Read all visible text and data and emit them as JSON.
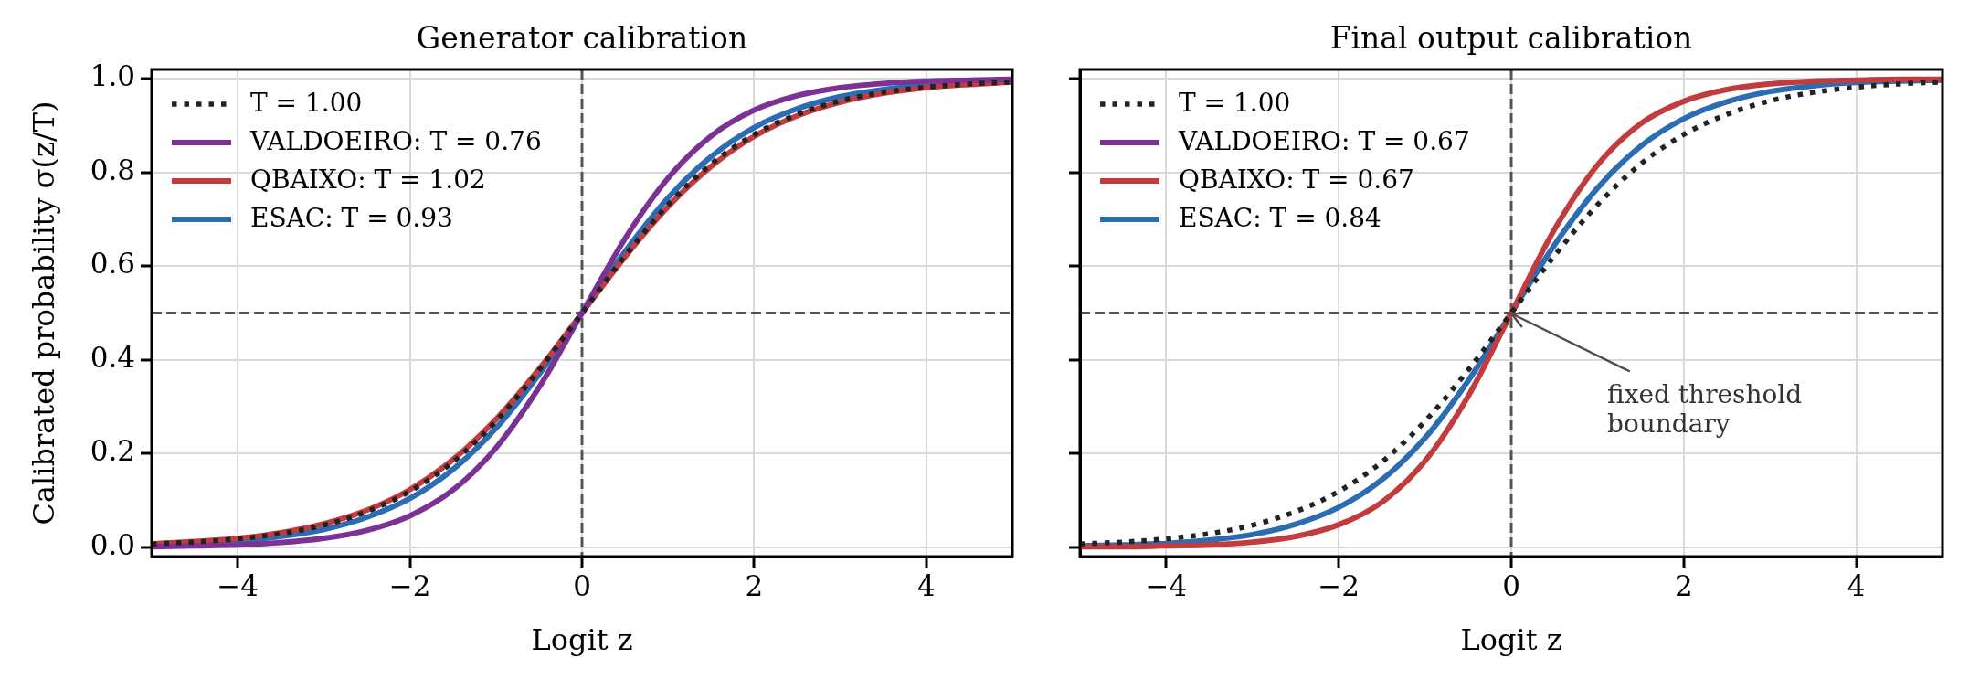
{
  "chart_data": [
    {
      "type": "line",
      "title": "Generator calibration",
      "xlabel": "Logit z",
      "ylabel": "Calibrated probability σ(z/T)",
      "x": [
        -5,
        -4.5,
        -4,
        -3.5,
        -3,
        -2.5,
        -2,
        -1.5,
        -1,
        -0.5,
        0,
        0.5,
        1,
        1.5,
        2,
        2.5,
        3,
        3.5,
        4,
        4.5,
        5
      ],
      "series": [
        {
          "name": "T = 1.00",
          "color": "#222222",
          "line_style": "dotted",
          "values": [
            0.007,
            0.011,
            0.018,
            0.029,
            0.047,
            0.076,
            0.119,
            0.182,
            0.269,
            0.378,
            0.5,
            0.622,
            0.731,
            0.818,
            0.881,
            0.924,
            0.953,
            0.971,
            0.982,
            0.989,
            0.993
          ]
        },
        {
          "name": "VALDOEIRO: T = 0.76",
          "color": "#7b3294",
          "values": [
            0.001,
            0.003,
            0.005,
            0.01,
            0.019,
            0.036,
            0.067,
            0.122,
            0.212,
            0.341,
            0.5,
            0.659,
            0.788,
            0.878,
            0.933,
            0.964,
            0.981,
            0.99,
            0.995,
            0.997,
            0.999
          ]
        },
        {
          "name": "QBAIXO: T = 1.02",
          "color": "#c23b3e",
          "values": [
            0.007,
            0.012,
            0.019,
            0.031,
            0.05,
            0.079,
            0.123,
            0.187,
            0.273,
            0.38,
            0.5,
            0.62,
            0.727,
            0.813,
            0.877,
            0.921,
            0.95,
            0.969,
            0.981,
            0.988,
            0.993
          ]
        },
        {
          "name": "ESAC: T = 0.93",
          "color": "#2b6cb3",
          "values": [
            0.005,
            0.008,
            0.013,
            0.023,
            0.038,
            0.064,
            0.104,
            0.166,
            0.254,
            0.369,
            0.5,
            0.631,
            0.746,
            0.834,
            0.896,
            0.936,
            0.962,
            0.977,
            0.987,
            0.992,
            0.995
          ]
        }
      ],
      "xlim": [
        -5,
        5
      ],
      "xticks": [
        {
          "value": -4,
          "label": "−4"
        },
        {
          "value": -2,
          "label": "−2"
        },
        0,
        2,
        4
      ],
      "ylim": [
        -0.02,
        1.02
      ],
      "yticks": [
        {
          "value": 0,
          "label": "0.0"
        },
        0.2,
        0.4,
        0.6,
        0.8,
        {
          "value": 1,
          "label": "1.0"
        }
      ],
      "ref_lines": [
        {
          "axis": "x",
          "value": 0,
          "color": "#555555",
          "line_style": "dashed"
        },
        {
          "axis": "y",
          "value": 0.5,
          "color": "#555555",
          "line_style": "dashed"
        }
      ],
      "grid": true,
      "legend": "top left"
    },
    {
      "type": "line",
      "title": "Final output calibration",
      "xlabel": "Logit z",
      "x": [
        -5,
        -4.5,
        -4,
        -3.5,
        -3,
        -2.5,
        -2,
        -1.5,
        -1,
        -0.5,
        0,
        0.5,
        1,
        1.5,
        2,
        2.5,
        3,
        3.5,
        4,
        4.5,
        5
      ],
      "series": [
        {
          "name": "T = 1.00",
          "color": "#222222",
          "line_style": "dotted",
          "values": [
            0.007,
            0.011,
            0.018,
            0.029,
            0.047,
            0.076,
            0.119,
            0.182,
            0.269,
            0.378,
            0.5,
            0.622,
            0.731,
            0.818,
            0.881,
            0.924,
            0.953,
            0.971,
            0.982,
            0.989,
            0.993
          ]
        },
        {
          "name": "VALDOEIRO: T = 0.67",
          "color": "#7b3294",
          "values": [
            null,
            null,
            null,
            null,
            null,
            null,
            null,
            null,
            null,
            null,
            null,
            null,
            null,
            null,
            null,
            null,
            null,
            null,
            null,
            null,
            null
          ]
        },
        {
          "name": "QBAIXO: T = 0.67",
          "color": "#c23b3e",
          "values": [
            0.001,
            0.001,
            0.003,
            0.005,
            0.011,
            0.023,
            0.048,
            0.096,
            0.184,
            0.322,
            0.5,
            0.678,
            0.816,
            0.904,
            0.952,
            0.977,
            0.989,
            0.995,
            0.997,
            0.999,
            0.999
          ]
        },
        {
          "name": "ESAC: T = 0.84",
          "color": "#2b6cb3",
          "values": [
            0.003,
            0.005,
            0.008,
            0.015,
            0.027,
            0.049,
            0.085,
            0.144,
            0.233,
            0.355,
            0.5,
            0.645,
            0.767,
            0.856,
            0.915,
            0.951,
            0.973,
            0.985,
            0.992,
            0.995,
            0.997
          ]
        }
      ],
      "xlim": [
        -5,
        5
      ],
      "xticks": [
        {
          "value": -4,
          "label": "−4"
        },
        {
          "value": -2,
          "label": "−2"
        },
        {
          "value": 0,
          "label": "0"
        },
        {
          "value": 2,
          "label": "2"
        },
        {
          "value": 4,
          "label": "4"
        }
      ],
      "ylim": [
        -0.02,
        1.02
      ],
      "yticks": [
        0,
        0.2,
        0.4,
        0.6,
        0.8,
        1
      ],
      "tick_labels": "x",
      "ref_lines": [
        {
          "axis": "x",
          "value": 0,
          "color": "#555555",
          "line_style": "dashed"
        },
        {
          "axis": "y",
          "value": 0.5,
          "color": "#555555",
          "line_style": "dashed"
        }
      ],
      "annotations": [
        {
          "text": "fixed threshold\nboundary",
          "x": 0,
          "y": 0.5
        }
      ],
      "grid": true,
      "legend": "top left"
    }
  ]
}
